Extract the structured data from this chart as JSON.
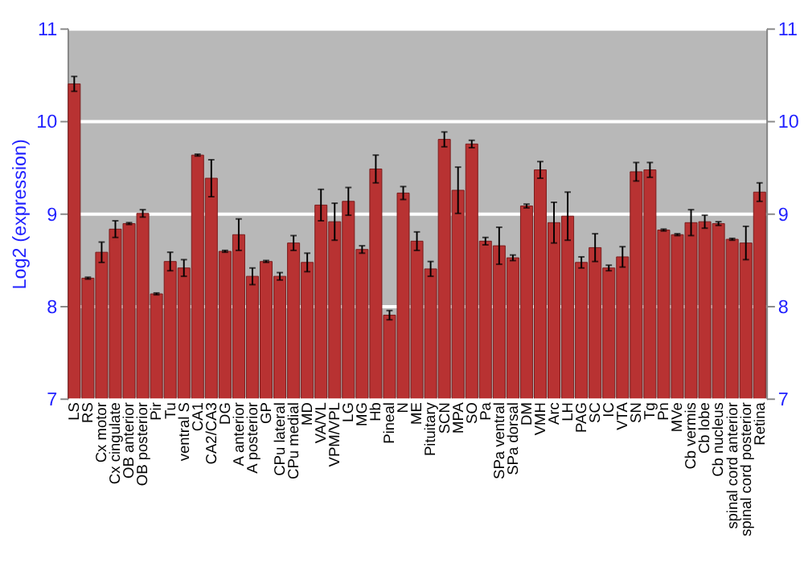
{
  "chart_data": {
    "type": "bar",
    "ylabel": "Log2 (expression)",
    "categories": [
      "LS",
      "RS",
      "Cx motor",
      "Cx cingulate",
      "OB anterior",
      "OB posterior",
      "Pir",
      "Tu",
      "ventral S",
      "CA1",
      "CA2/CA3",
      "DG",
      "A anterior",
      "A posterior",
      "GP",
      "CPu lateral",
      "CPu medial",
      "MD",
      "VA/VL",
      "VPM/VPL",
      "LG",
      "MG",
      "Hb",
      "Pineal",
      "N",
      "ME",
      "Pituitary",
      "SCN",
      "MPA",
      "SO",
      "Pa",
      "SPa ventral",
      "SPa dorsal",
      "DM",
      "VMH",
      "Arc",
      "LH",
      "PAG",
      "SC",
      "IC",
      "VTA",
      "SN",
      "Tg",
      "Pn",
      "MVe",
      "Cb vermis",
      "Cb lobe",
      "Cb nucleus",
      "spinal cord anterior",
      "spinal cord posterior",
      "Retina"
    ],
    "values": [
      10.4,
      8.3,
      8.58,
      8.83,
      8.89,
      9.0,
      8.13,
      8.48,
      8.41,
      9.63,
      9.38,
      8.59,
      8.77,
      8.32,
      8.48,
      8.32,
      8.68,
      8.47,
      9.09,
      8.91,
      9.13,
      8.61,
      9.48,
      7.9,
      9.22,
      8.7,
      8.4,
      9.8,
      9.25,
      9.75,
      8.7,
      8.65,
      8.52,
      9.08,
      9.47,
      8.9,
      8.97,
      8.47,
      8.63,
      8.41,
      8.53,
      9.45,
      9.47,
      8.82,
      8.77,
      8.9,
      8.91,
      8.89,
      8.72,
      8.68,
      9.23
    ],
    "errors": [
      0.08,
      0.01,
      0.11,
      0.09,
      0.01,
      0.04,
      0.01,
      0.1,
      0.09,
      0.01,
      0.2,
      0.01,
      0.17,
      0.09,
      0.01,
      0.04,
      0.08,
      0.1,
      0.17,
      0.2,
      0.15,
      0.04,
      0.15,
      0.05,
      0.07,
      0.1,
      0.08,
      0.08,
      0.25,
      0.04,
      0.04,
      0.2,
      0.03,
      0.02,
      0.09,
      0.22,
      0.26,
      0.06,
      0.15,
      0.03,
      0.11,
      0.1,
      0.08,
      0.01,
      0.01,
      0.14,
      0.07,
      0.02,
      0.01,
      0.18,
      0.1
    ],
    "color": "#b83232",
    "ylim": [
      7,
      11
    ],
    "yticks": [
      7,
      8,
      9,
      10,
      11
    ],
    "y2lim": [
      7,
      11
    ],
    "y2ticks": [
      7,
      8,
      9,
      10,
      11
    ],
    "grid": "y"
  }
}
